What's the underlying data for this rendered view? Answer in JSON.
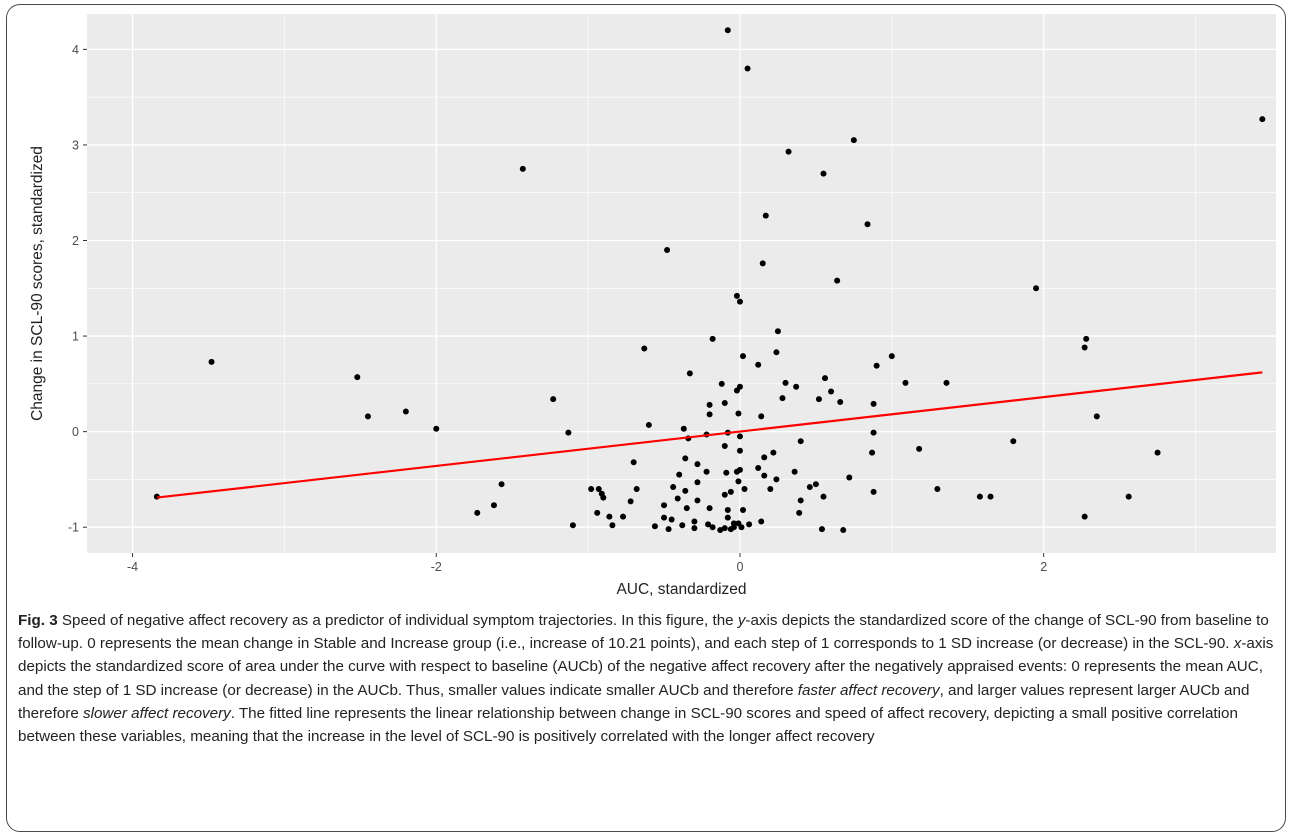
{
  "chart_data": {
    "type": "scatter",
    "xlabel": "AUC, standardized",
    "ylabel": "Change in SCL-90 scores, standardized",
    "xlim": [
      -4.3,
      3.53
    ],
    "ylim": [
      -1.27,
      4.37
    ],
    "x_ticks": [
      -4,
      -2,
      0,
      2
    ],
    "y_ticks": [
      -1,
      0,
      1,
      2,
      3,
      4
    ],
    "grid": true,
    "panel_background": "#ebebeb",
    "grid_color": "#ffffff",
    "point_color": "#000000",
    "fit_line_color": "#ff0000",
    "fit_line": {
      "x": [
        -3.84,
        3.44
      ],
      "y": [
        -0.69,
        0.62
      ]
    },
    "points": [
      [
        -0.08,
        4.2
      ],
      [
        0.05,
        3.8
      ],
      [
        3.44,
        3.27
      ],
      [
        0.75,
        3.05
      ],
      [
        0.32,
        2.93
      ],
      [
        -1.43,
        2.75
      ],
      [
        0.55,
        2.7
      ],
      [
        0.17,
        2.26
      ],
      [
        0.84,
        2.17
      ],
      [
        -0.48,
        1.9
      ],
      [
        0.15,
        1.76
      ],
      [
        0.64,
        1.58
      ],
      [
        1.95,
        1.5
      ],
      [
        -0.02,
        1.42
      ],
      [
        0.0,
        1.36
      ],
      [
        0.25,
        1.05
      ],
      [
        2.28,
        0.97
      ],
      [
        -0.18,
        0.97
      ],
      [
        2.27,
        0.88
      ],
      [
        -0.63,
        0.87
      ],
      [
        0.24,
        0.83
      ],
      [
        1.0,
        0.79
      ],
      [
        0.02,
        0.79
      ],
      [
        -3.48,
        0.73
      ],
      [
        0.12,
        0.7
      ],
      [
        0.9,
        0.69
      ],
      [
        -0.33,
        0.61
      ],
      [
        -2.52,
        0.57
      ],
      [
        0.56,
        0.56
      ],
      [
        0.3,
        0.51
      ],
      [
        1.09,
        0.51
      ],
      [
        1.36,
        0.51
      ],
      [
        -0.12,
        0.5
      ],
      [
        0.37,
        0.47
      ],
      [
        0.0,
        0.47
      ],
      [
        -0.02,
        0.43
      ],
      [
        0.6,
        0.42
      ],
      [
        0.52,
        0.34
      ],
      [
        0.66,
        0.31
      ],
      [
        -1.23,
        0.34
      ],
      [
        0.28,
        0.35
      ],
      [
        -0.1,
        0.3
      ],
      [
        -0.2,
        0.28
      ],
      [
        0.88,
        0.29
      ],
      [
        -0.01,
        0.19
      ],
      [
        -0.2,
        0.18
      ],
      [
        0.14,
        0.16
      ],
      [
        -2.2,
        0.21
      ],
      [
        -2.45,
        0.16
      ],
      [
        2.35,
        0.16
      ],
      [
        -0.6,
        0.07
      ],
      [
        -2.0,
        0.03
      ],
      [
        -0.37,
        0.03
      ],
      [
        -1.13,
        -0.01
      ],
      [
        -0.08,
        -0.01
      ],
      [
        0.88,
        -0.01
      ],
      [
        -0.22,
        -0.03
      ],
      [
        -0.34,
        -0.07
      ],
      [
        0.0,
        -0.05
      ],
      [
        1.8,
        -0.1
      ],
      [
        0.4,
        -0.1
      ],
      [
        -0.1,
        -0.15
      ],
      [
        1.18,
        -0.18
      ],
      [
        0.87,
        -0.22
      ],
      [
        0.0,
        -0.2
      ],
      [
        2.75,
        -0.22
      ],
      [
        0.22,
        -0.22
      ],
      [
        0.16,
        -0.27
      ],
      [
        -0.36,
        -0.28
      ],
      [
        -0.7,
        -0.32
      ],
      [
        -0.28,
        -0.34
      ],
      [
        0.12,
        -0.38
      ],
      [
        0.0,
        -0.4
      ],
      [
        -0.02,
        -0.42
      ],
      [
        0.36,
        -0.42
      ],
      [
        -0.22,
        -0.42
      ],
      [
        -0.09,
        -0.43
      ],
      [
        -0.4,
        -0.45
      ],
      [
        0.16,
        -0.46
      ],
      [
        0.72,
        -0.48
      ],
      [
        0.24,
        -0.5
      ],
      [
        -0.01,
        -0.52
      ],
      [
        -1.57,
        -0.55
      ],
      [
        -0.28,
        -0.53
      ],
      [
        0.5,
        -0.55
      ],
      [
        0.46,
        -0.58
      ],
      [
        0.2,
        -0.6
      ],
      [
        -0.44,
        -0.58
      ],
      [
        -0.68,
        -0.6
      ],
      [
        -0.98,
        -0.6
      ],
      [
        -0.93,
        -0.6
      ],
      [
        0.03,
        -0.6
      ],
      [
        1.3,
        -0.6
      ],
      [
        -0.36,
        -0.62
      ],
      [
        -0.06,
        -0.63
      ],
      [
        0.88,
        -0.63
      ],
      [
        -0.1,
        -0.66
      ],
      [
        0.55,
        -0.68
      ],
      [
        1.58,
        -0.68
      ],
      [
        1.65,
        -0.68
      ],
      [
        2.56,
        -0.68
      ],
      [
        -3.84,
        -0.68
      ],
      [
        -0.91,
        -0.65
      ],
      [
        -0.9,
        -0.69
      ],
      [
        -0.28,
        -0.72
      ],
      [
        -0.41,
        -0.7
      ],
      [
        0.4,
        -0.72
      ],
      [
        -0.72,
        -0.73
      ],
      [
        -1.62,
        -0.77
      ],
      [
        -0.5,
        -0.77
      ],
      [
        -0.35,
        -0.8
      ],
      [
        -0.2,
        -0.8
      ],
      [
        -0.08,
        -0.82
      ],
      [
        0.02,
        -0.82
      ],
      [
        -1.73,
        -0.85
      ],
      [
        0.39,
        -0.85
      ],
      [
        -0.94,
        -0.85
      ],
      [
        -0.86,
        -0.89
      ],
      [
        -0.77,
        -0.89
      ],
      [
        -0.5,
        -0.9
      ],
      [
        -0.08,
        -0.9
      ],
      [
        2.27,
        -0.89
      ],
      [
        -0.45,
        -0.92
      ],
      [
        0.14,
        -0.94
      ],
      [
        -0.3,
        -0.94
      ],
      [
        -0.04,
        -0.96
      ],
      [
        -0.21,
        -0.97
      ],
      [
        -1.1,
        -0.98
      ],
      [
        -0.84,
        -0.98
      ],
      [
        -0.38,
        -0.98
      ],
      [
        -0.01,
        -0.96
      ],
      [
        0.06,
        -0.97
      ],
      [
        -0.56,
        -0.99
      ],
      [
        -0.18,
        -1.0
      ],
      [
        -0.04,
        -1.0
      ],
      [
        0.01,
        -1.0
      ],
      [
        -0.1,
        -1.01
      ],
      [
        -0.3,
        -1.01
      ],
      [
        -0.47,
        -1.02
      ],
      [
        0.54,
        -1.02
      ],
      [
        0.68,
        -1.03
      ],
      [
        -0.13,
        -1.03
      ],
      [
        -0.06,
        -1.02
      ]
    ]
  },
  "caption": {
    "label": "Fig. 3",
    "p1": " Speed of negative affect recovery as a predictor of individual symptom trajectories. In this figure, the ",
    "y_axis_term": "y",
    "p2": "-axis depicts the standardized score of the change of SCL-90 from baseline to follow-up. 0 represents the mean change in Stable and Increase group (i.e., increase of 10.21 points), and each step of 1 corresponds to 1 SD increase (or decrease) in the SCL-90. ",
    "x_axis_term": "x",
    "p3": "-axis depicts the standardized score of area under the curve with respect to baseline (AUCb) of the negative affect recovery after the negatively appraised events: 0 represents the mean AUC, and the step of 1 SD increase (or decrease) in the AUCb. Thus, smaller values indicate smaller AUCb and therefore ",
    "faster": "faster affect recovery",
    "p4": ", and larger values represent larger AUCb and therefore ",
    "slower": "slower affect recovery",
    "p5": ". The fitted line represents the linear relationship between change in SCL-90 scores and speed of affect recovery, depicting a small positive correlation between these variables, meaning that the increase in the level of SCL-90 is positively correlated with the longer affect recovery"
  }
}
